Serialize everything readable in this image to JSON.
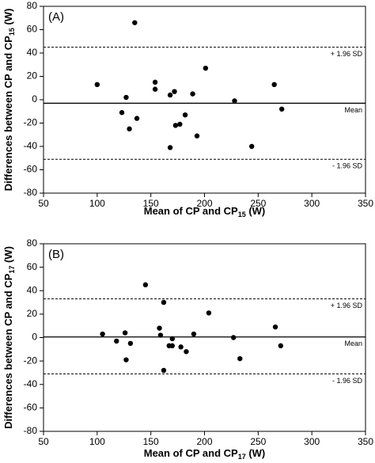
{
  "chart_data": [
    {
      "type": "scatter",
      "panel_label": "(A)",
      "x_label": {
        "main": "Mean of CP and CP",
        "sub": "15",
        "end": " (W)"
      },
      "y_label": {
        "main": "Differences between CP and CP",
        "sub": "15",
        "end": " (W)"
      },
      "x": [
        100,
        123,
        127,
        130,
        135,
        137,
        154,
        154,
        168,
        168,
        172,
        173,
        177,
        182,
        189,
        193,
        201,
        228,
        244,
        265,
        272
      ],
      "values": [
        13,
        -11,
        2,
        -25,
        66,
        -16,
        15,
        9,
        -41,
        4,
        7,
        -22,
        -21,
        -13,
        5,
        -31,
        27,
        -1,
        -40,
        13,
        -8
      ],
      "color": "#000000",
      "xlim": [
        50,
        350
      ],
      "xticks": [
        50,
        100,
        150,
        200,
        250,
        300,
        350
      ],
      "ylim": [
        -80,
        80
      ],
      "yticks": [
        -80,
        -60,
        -40,
        -20,
        0,
        20,
        40,
        60,
        80
      ],
      "reference_lines": [
        {
          "value": 45,
          "label": "+ 1.96 SD",
          "style": "dashed"
        },
        {
          "value": -3,
          "label": "Mean",
          "style": "solid"
        },
        {
          "value": -51,
          "label": "- 1.96 SD",
          "style": "dashed"
        }
      ]
    },
    {
      "type": "scatter",
      "panel_label": "(B)",
      "x_label": {
        "main": "Mean of CP and CP",
        "sub": "17",
        "end": " (W)"
      },
      "y_label": {
        "main": "Differences between CP and CP",
        "sub": "17",
        "end": " (W)"
      },
      "x": [
        105,
        118,
        126,
        127,
        131,
        145,
        158,
        159,
        162,
        162,
        167,
        170,
        170,
        178,
        183,
        190,
        204,
        227,
        233,
        266,
        271
      ],
      "values": [
        3,
        -3,
        4,
        -19,
        -5,
        45,
        8,
        2,
        30,
        -28,
        -7,
        -7,
        -1,
        -8,
        -12,
        3,
        21,
        0,
        -18,
        9,
        -7
      ],
      "color": "#000000",
      "xlim": [
        50,
        350
      ],
      "xticks": [
        50,
        100,
        150,
        200,
        250,
        300,
        350
      ],
      "ylim": [
        -80,
        80
      ],
      "yticks": [
        -80,
        -60,
        -40,
        -20,
        0,
        20,
        40,
        60,
        80
      ],
      "reference_lines": [
        {
          "value": 33,
          "label": "+ 1.96 SD",
          "style": "dashed"
        },
        {
          "value": 0.5,
          "label": "Mean",
          "style": "solid"
        },
        {
          "value": -31,
          "label": "- 1.96 SD",
          "style": "dashed"
        }
      ]
    }
  ]
}
